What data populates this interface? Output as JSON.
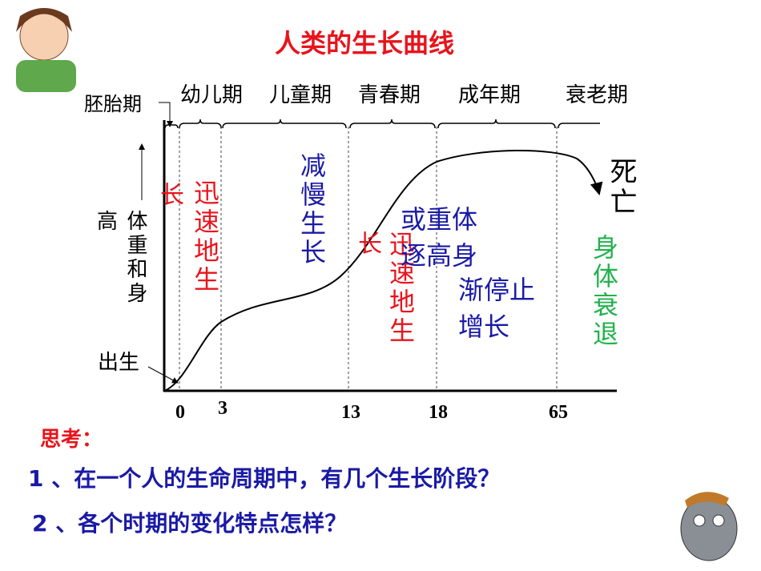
{
  "title": "人类的生长曲线",
  "stages": [
    "胚胎期",
    "幼儿期",
    "儿童期",
    "青春期",
    "成年期",
    "衰老期"
  ],
  "ages": [
    "0",
    "3",
    "13",
    "18",
    "65"
  ],
  "y_axis_label": [
    "高",
    "体重和身"
  ],
  "birth": "出生",
  "death": "死亡",
  "notes": {
    "infant_a": "长",
    "infant_b": "迅速地生",
    "child": "减慢生长",
    "teen_a": "长",
    "teen_b": "迅速地生",
    "adult": [
      "或重体",
      "逐高身",
      "渐停止",
      "增长"
    ],
    "old": "身体衰退"
  },
  "think": "思考：",
  "questions": [
    "1 、在一个人的生命周期中，有几个生长阶段？",
    "2 、各个时期的变化特点怎样？"
  ]
}
